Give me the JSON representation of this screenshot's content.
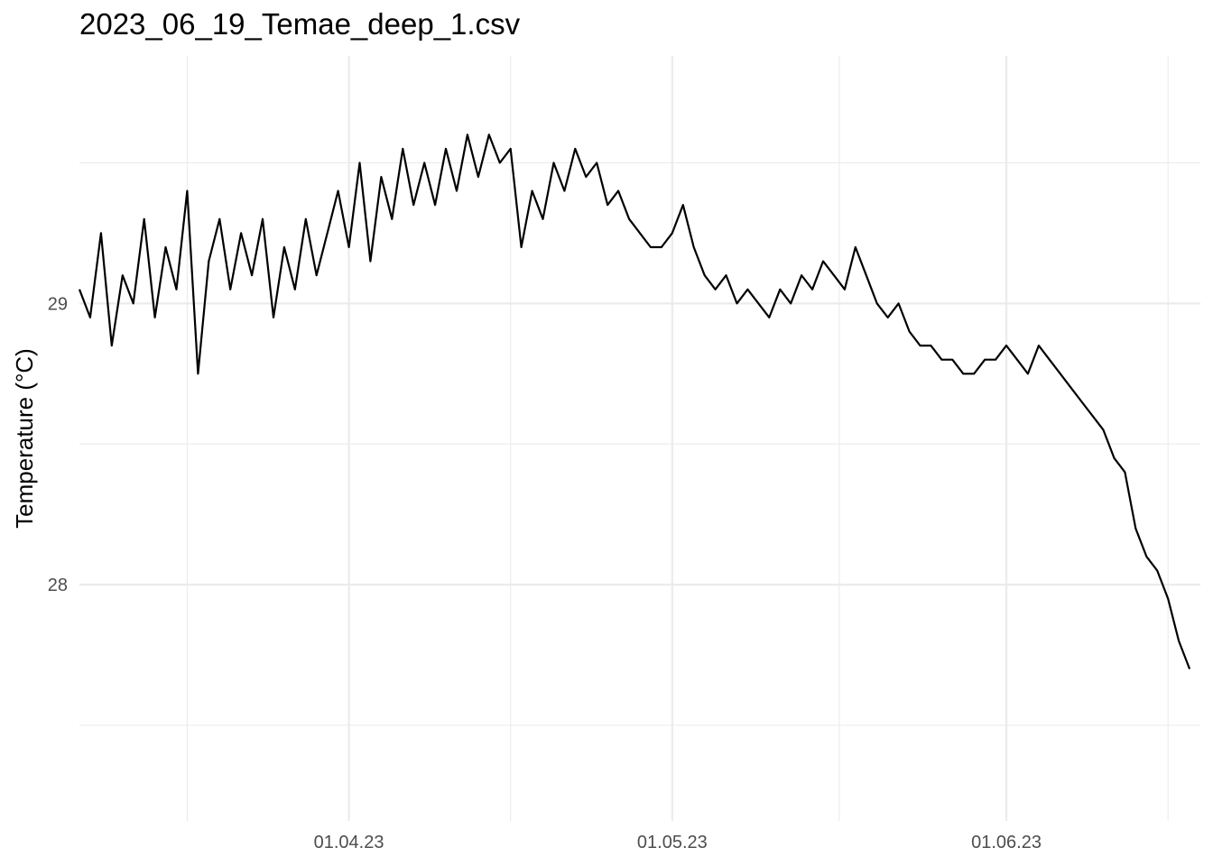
{
  "chart_data": {
    "type": "line",
    "title": "2023_06_19_Temae_deep_1.csv",
    "xlabel": "",
    "ylabel": "Temperature (°C)",
    "x_ticks": [
      "01.04.23",
      "01.05.23",
      "01.06.23"
    ],
    "x_tick_dates": [
      "2023-04-01",
      "2023-05-01",
      "2023-06-01"
    ],
    "y_ticks": [
      28,
      29
    ],
    "xlim": [
      "2023-03-07",
      "2023-06-19"
    ],
    "ylim": [
      27.16,
      29.88
    ],
    "grid": true,
    "series": [
      {
        "color": "#000000",
        "x": [
          "2023-03-07",
          "2023-03-08",
          "2023-03-09",
          "2023-03-10",
          "2023-03-11",
          "2023-03-12",
          "2023-03-13",
          "2023-03-14",
          "2023-03-15",
          "2023-03-16",
          "2023-03-17",
          "2023-03-18",
          "2023-03-19",
          "2023-03-20",
          "2023-03-21",
          "2023-03-22",
          "2023-03-23",
          "2023-03-24",
          "2023-03-25",
          "2023-03-26",
          "2023-03-27",
          "2023-03-28",
          "2023-03-29",
          "2023-03-30",
          "2023-03-31",
          "2023-04-01",
          "2023-04-02",
          "2023-04-03",
          "2023-04-04",
          "2023-04-05",
          "2023-04-06",
          "2023-04-07",
          "2023-04-08",
          "2023-04-09",
          "2023-04-10",
          "2023-04-11",
          "2023-04-12",
          "2023-04-13",
          "2023-04-14",
          "2023-04-15",
          "2023-04-16",
          "2023-04-17",
          "2023-04-18",
          "2023-04-19",
          "2023-04-20",
          "2023-04-21",
          "2023-04-22",
          "2023-04-23",
          "2023-04-24",
          "2023-04-25",
          "2023-04-26",
          "2023-04-27",
          "2023-04-28",
          "2023-04-29",
          "2023-04-30",
          "2023-05-01",
          "2023-05-02",
          "2023-05-03",
          "2023-05-04",
          "2023-05-05",
          "2023-05-06",
          "2023-05-07",
          "2023-05-08",
          "2023-05-09",
          "2023-05-10",
          "2023-05-11",
          "2023-05-12",
          "2023-05-13",
          "2023-05-14",
          "2023-05-15",
          "2023-05-16",
          "2023-05-17",
          "2023-05-18",
          "2023-05-19",
          "2023-05-20",
          "2023-05-21",
          "2023-05-22",
          "2023-05-23",
          "2023-05-24",
          "2023-05-25",
          "2023-05-26",
          "2023-05-27",
          "2023-05-28",
          "2023-05-29",
          "2023-05-30",
          "2023-05-31",
          "2023-06-01",
          "2023-06-02",
          "2023-06-03",
          "2023-06-04",
          "2023-06-05",
          "2023-06-06",
          "2023-06-07",
          "2023-06-08",
          "2023-06-09",
          "2023-06-10",
          "2023-06-11",
          "2023-06-12",
          "2023-06-13",
          "2023-06-14",
          "2023-06-15",
          "2023-06-16",
          "2023-06-17",
          "2023-06-18"
        ],
        "y": [
          29.05,
          28.95,
          29.25,
          28.85,
          29.1,
          29.0,
          29.3,
          28.95,
          29.2,
          29.05,
          29.4,
          28.75,
          29.15,
          29.3,
          29.05,
          29.25,
          29.1,
          29.3,
          28.95,
          29.2,
          29.05,
          29.3,
          29.1,
          29.25,
          29.4,
          29.2,
          29.5,
          29.15,
          29.45,
          29.3,
          29.55,
          29.35,
          29.5,
          29.35,
          29.55,
          29.4,
          29.6,
          29.45,
          29.6,
          29.5,
          29.55,
          29.2,
          29.4,
          29.3,
          29.5,
          29.4,
          29.55,
          29.45,
          29.5,
          29.35,
          29.4,
          29.3,
          29.25,
          29.2,
          29.2,
          29.25,
          29.35,
          29.2,
          29.1,
          29.05,
          29.1,
          29.0,
          29.05,
          29.0,
          28.95,
          29.05,
          29.0,
          29.1,
          29.05,
          29.15,
          29.1,
          29.05,
          29.2,
          29.1,
          29.0,
          28.95,
          29.0,
          28.9,
          28.85,
          28.85,
          28.8,
          28.8,
          28.75,
          28.75,
          28.8,
          28.8,
          28.85,
          28.8,
          28.75,
          28.85,
          28.8,
          28.75,
          28.7,
          28.65,
          28.6,
          28.55,
          28.45,
          28.4,
          28.2,
          28.1,
          28.05,
          27.95,
          27.8,
          27.7
        ]
      }
    ]
  }
}
